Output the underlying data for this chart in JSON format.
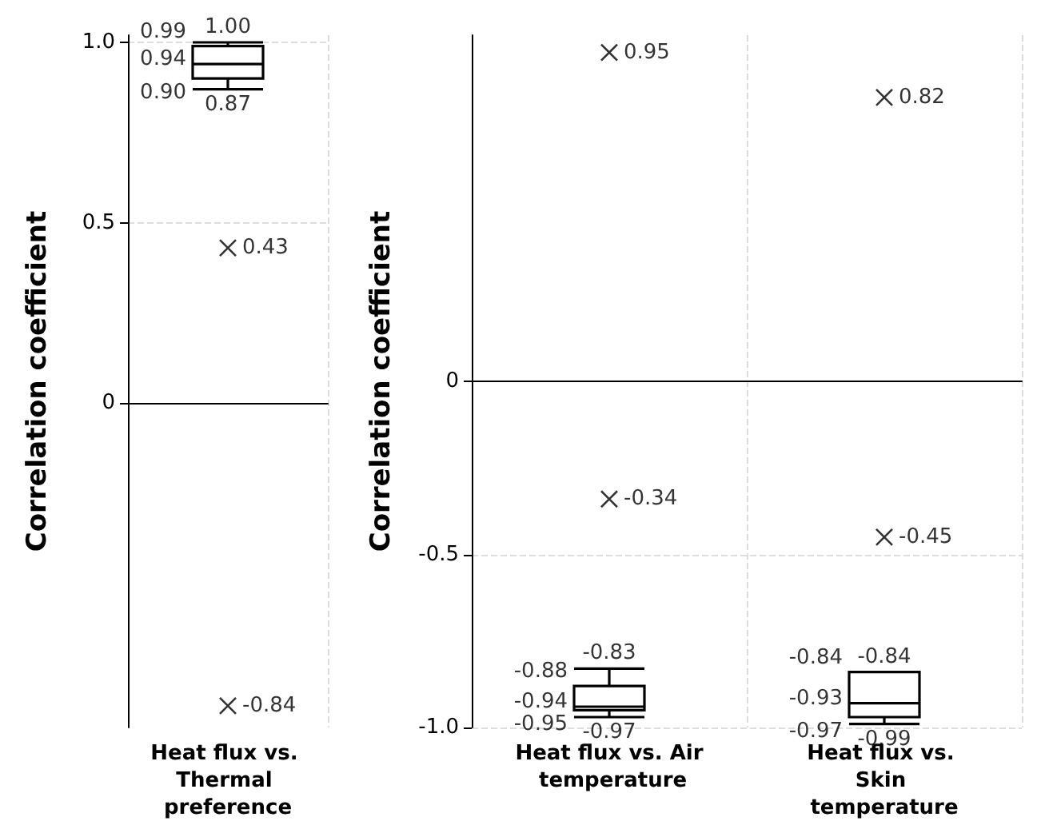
{
  "chart_data": [
    {
      "type": "box",
      "categories": [
        "Heat flux vs. Thermal preference"
      ],
      "ylabel": "Correlation coefficient",
      "ylim": [
        -0.9,
        1.02
      ],
      "yticks": [
        0,
        {
          "value": 0.5,
          "label": "0.5"
        },
        {
          "value": 1.0,
          "label": "1.0"
        }
      ],
      "grid": true,
      "marker": "cross",
      "series": [
        {
          "color": "#000000",
          "boxes": [
            {
              "low": 0.87,
              "q1": 0.9,
              "median": 0.94,
              "q3": 0.99,
              "high": 1.0,
              "outliers": [
                0.43,
                -0.84
              ]
            }
          ]
        }
      ],
      "annotations": [
        {
          "text": "1.00",
          "x": "Heat flux vs. Thermal preference",
          "y": 1.0
        },
        {
          "text": "0.99",
          "x": "Heat flux vs. Thermal preference",
          "y": 0.99
        },
        {
          "text": "0.94",
          "x": "Heat flux vs. Thermal preference",
          "y": 0.94
        },
        {
          "text": "0.90",
          "x": "Heat flux vs. Thermal preference",
          "y": 0.9
        },
        {
          "text": "0.87",
          "x": "Heat flux vs. Thermal preference",
          "y": 0.87
        },
        "0.43",
        "-0.84"
      ]
    },
    {
      "type": "box",
      "categories": [
        "Heat flux vs. Air temperature",
        "Heat flux vs. Skin temperature"
      ],
      "ylabel": "Correlation coefficient",
      "ylim": [
        -1.0,
        1.0
      ],
      "yticks": [
        {
          "value": -1.0,
          "label": "-1.0"
        },
        {
          "value": -0.5,
          "label": "-0.5"
        },
        0
      ],
      "grid": true,
      "marker": "cross",
      "series": [
        {
          "color": "#000000",
          "boxes": [
            {
              "low": -0.97,
              "q1": -0.95,
              "median": -0.94,
              "q3": -0.88,
              "high": -0.83,
              "outliers": [
                -0.34,
                0.95
              ]
            },
            {
              "low": -0.99,
              "q1": -0.97,
              "median": -0.93,
              "q3": -0.84,
              "high": -0.84,
              "outliers": [
                -0.45,
                0.82
              ]
            }
          ]
        }
      ],
      "annotations": [
        {
          "text": "-0.83",
          "x": "Heat flux vs. Air temperature",
          "y": -0.83
        },
        {
          "text": "-0.88",
          "x": "Heat flux vs. Air temperature",
          "y": -0.88
        },
        {
          "text": "-0.94",
          "x": "Heat flux vs. Air temperature",
          "y": -0.94
        },
        {
          "text": "-0.95",
          "x": "Heat flux vs. Air temperature",
          "y": -0.95
        },
        {
          "text": "-0.97",
          "x": "Heat flux vs. Air temperature",
          "y": -0.97
        },
        "-0.34",
        "0.95",
        {
          "text": "-0.84",
          "x": "Heat flux vs. Skin temperature",
          "y": -0.84
        },
        {
          "text": "-0.84",
          "x": "Heat flux vs. Skin temperature",
          "y": -0.84
        },
        {
          "text": "-0.93",
          "x": "Heat flux vs. Skin temperature",
          "y": -0.93
        },
        {
          "text": "-0.97",
          "x": "Heat flux vs. Skin temperature",
          "y": -0.97
        },
        {
          "text": "-0.99",
          "x": "Heat flux vs. Skin temperature",
          "y": -0.99
        },
        "-0.45",
        "0.82"
      ]
    }
  ]
}
